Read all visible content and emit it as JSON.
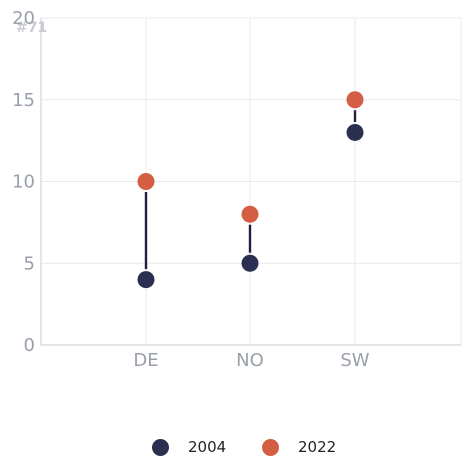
{
  "watermark": "#71",
  "colors": {
    "2004": "#2b3050",
    "2022": "#d45e43",
    "connector": "#1c2240",
    "grid": "#e8e8eb",
    "axis": "#c8cbd2",
    "tick_text": "#9aa0ab"
  },
  "chart_data": {
    "type": "dumbbell",
    "categories": [
      "DE",
      "NO",
      "SW"
    ],
    "series": [
      {
        "name": "2004",
        "values": [
          4,
          5,
          13
        ]
      },
      {
        "name": "2022",
        "values": [
          10,
          8,
          15
        ]
      }
    ],
    "ylim": [
      0,
      20
    ],
    "yticks": [
      0,
      5,
      10,
      15,
      20
    ],
    "grid": true,
    "legend_position": "bottom"
  }
}
